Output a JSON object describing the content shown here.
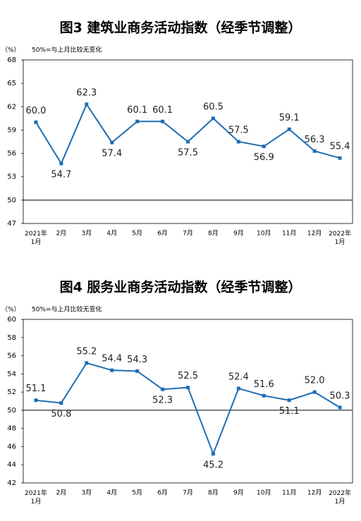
{
  "chart_data": [
    {
      "type": "line",
      "title": "图3  建筑业商务活动指数（经季节调整）",
      "unit": "（%）",
      "note": "50%=与上月比较无变化",
      "categories": [
        "2021年\n1月",
        "2月",
        "3月",
        "4月",
        "5月",
        "6月",
        "7月",
        "8月",
        "9月",
        "10月",
        "11月",
        "12月",
        "2022年\n1月"
      ],
      "series": [
        {
          "name": "建筑业商务活动指数",
          "color": "#1e6eb4",
          "values": [
            60.0,
            54.7,
            62.3,
            57.4,
            60.1,
            60.1,
            57.5,
            60.5,
            57.5,
            56.9,
            59.1,
            56.3,
            55.4
          ],
          "value_labels": [
            "60.0",
            "54.7",
            "62.3",
            "57.4",
            "60.1",
            "60.1",
            "57.5",
            "60.5",
            "57.5",
            "56.9",
            "59.1",
            "56.3",
            "55.4"
          ]
        }
      ],
      "ylim": [
        47,
        68
      ],
      "yticks": [
        47,
        50,
        53,
        56,
        59,
        62,
        65,
        68
      ],
      "reference_line": 50
    },
    {
      "type": "line",
      "title": "图4  服务业商务活动指数（经季节调整）",
      "unit": "（%）",
      "note": "50%=与上月比较无变化",
      "categories": [
        "2021年\n1月",
        "2月",
        "3月",
        "4月",
        "5月",
        "6月",
        "7月",
        "8月",
        "9月",
        "10月",
        "11月",
        "12月",
        "2022年\n1月"
      ],
      "series": [
        {
          "name": "服务业商务活动指数",
          "color": "#1e6eb4",
          "values": [
            51.1,
            50.8,
            55.2,
            54.4,
            54.3,
            52.3,
            52.5,
            45.2,
            52.4,
            51.6,
            51.1,
            52.0,
            50.3
          ],
          "value_labels": [
            "51.1",
            "50.8",
            "55.2",
            "54.4",
            "54.3",
            "52.3",
            "52.5",
            "45.2",
            "52.4",
            "51.6",
            "51.1",
            "52.0",
            "50.3"
          ]
        }
      ],
      "ylim": [
        42,
        60
      ],
      "yticks": [
        42,
        44,
        46,
        48,
        50,
        52,
        54,
        56,
        58,
        60
      ],
      "reference_line": 50
    }
  ]
}
